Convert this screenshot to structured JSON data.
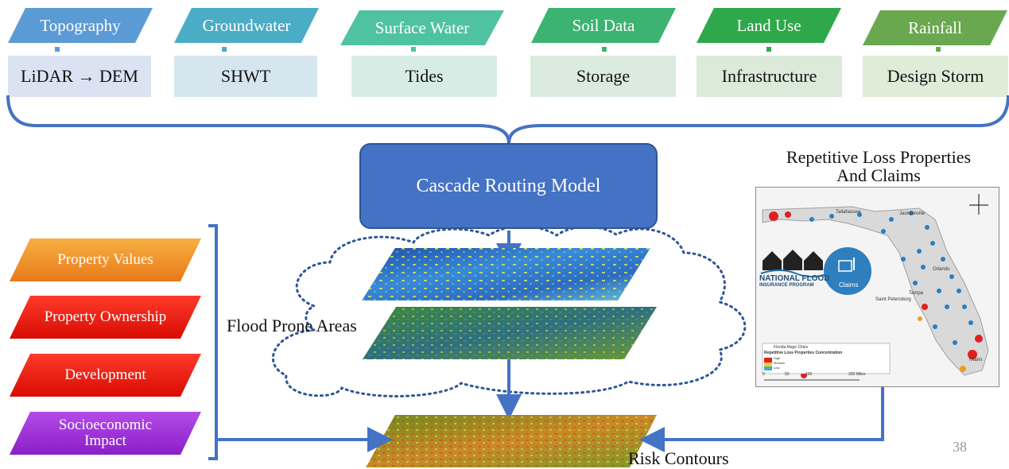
{
  "inputs": [
    {
      "label": "Topography",
      "detail": "LiDAR → DEM",
      "color": "#5b9bd5",
      "detail_bg": "#dbe3f3"
    },
    {
      "label": "Groundwater",
      "detail": "SHWT",
      "color": "#4bacc6",
      "detail_bg": "#d6e6ef"
    },
    {
      "label": "Surface Water",
      "detail": "Tides",
      "color": "#4fc3a1",
      "detail_bg": "#d8ece6"
    },
    {
      "label": "Soil Data",
      "detail": "Storage",
      "color": "#3cb371",
      "detail_bg": "#dcebe0"
    },
    {
      "label": "Land Use",
      "detail": "Infrastructure",
      "color": "#2ea84a",
      "detail_bg": "#dbead9"
    },
    {
      "label": "Rainfall",
      "detail": "Design Storm",
      "color": "#6aa84f",
      "detail_bg": "#dfecd7"
    }
  ],
  "model": {
    "label": "Cascade Routing Model",
    "color": "#4472c4"
  },
  "flood_prone_label": "Flood Prone Areas",
  "risk_contours_label": "Risk Contours",
  "map_panel": {
    "title_line1": "Repetitive Loss Properties",
    "title_line2": "And Claims",
    "cities": [
      "Tallahassee",
      "Jacksonville",
      "Orlando",
      "Tampa",
      "Saint Petersburg",
      "Miami"
    ],
    "nfip_line1": "NATIONAL FLOOD",
    "nfip_line2": "INSURANCE PROGRAM",
    "claims": "Claims",
    "legend_cities": "Florida Major Cities",
    "legend_title": "Repetitive Loss Properties Concentration",
    "legend_high": "High",
    "legend_medium": "Medium",
    "legend_low": "Low",
    "scale": [
      "0",
      "50",
      "100",
      "200 Miles"
    ]
  },
  "factors": [
    {
      "label": "Property Values",
      "color": "#f28c28"
    },
    {
      "label": "Property Ownership",
      "color": "#e8140c"
    },
    {
      "label": "Development",
      "color": "#e8140c"
    },
    {
      "label": "Socioeconomic Impact",
      "color": "#9b30d9"
    }
  ],
  "page_number": "38"
}
